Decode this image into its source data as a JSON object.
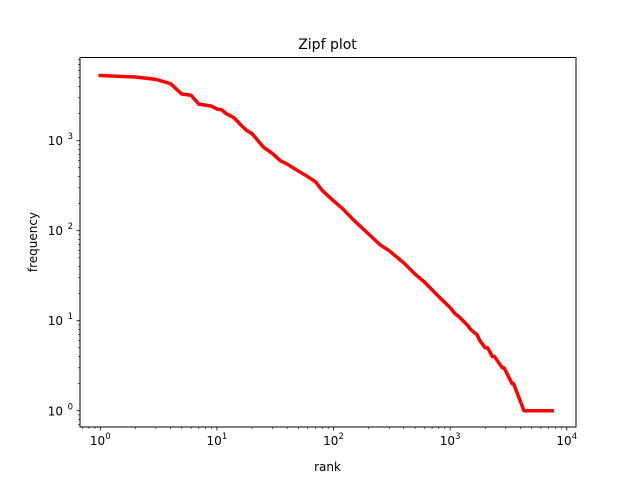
{
  "chart_data": {
    "type": "line",
    "title": "Zipf plot",
    "xlabel": "rank",
    "ylabel": "frequency",
    "xscale": "log",
    "yscale": "log",
    "xlim": [
      0.67,
      12000
    ],
    "ylim": [
      0.66,
      8400
    ],
    "grid": false,
    "legend": "none",
    "line_color": "#ff0000",
    "x_ticks": [
      {
        "value": 1,
        "base": "10",
        "exp": "0"
      },
      {
        "value": 10,
        "base": "10",
        "exp": "1"
      },
      {
        "value": 100,
        "base": "10",
        "exp": "2"
      },
      {
        "value": 1000,
        "base": "10",
        "exp": "3"
      },
      {
        "value": 10000,
        "base": "10",
        "exp": "4"
      }
    ],
    "y_ticks": [
      {
        "value": 1,
        "base": "10",
        "exp": "0"
      },
      {
        "value": 10,
        "base": "10",
        "exp": "1"
      },
      {
        "value": 100,
        "base": "10",
        "exp": "2"
      },
      {
        "value": 1000,
        "base": "10",
        "exp": "3"
      }
    ],
    "series": [
      {
        "x": [
          1,
          2,
          3,
          4,
          5,
          6,
          7,
          9,
          10,
          11,
          12,
          14,
          16,
          18,
          20,
          25,
          30,
          35,
          40,
          50,
          60,
          70,
          80,
          100,
          120,
          150,
          200,
          250,
          300,
          400,
          500,
          600,
          800,
          1000,
          1100,
          1200,
          1400,
          1500,
          1700,
          1800,
          2000,
          2100,
          2300,
          2400,
          2800,
          2900,
          3400,
          3500,
          4300,
          4400,
          7500
        ],
        "y": [
          5300,
          5100,
          4800,
          4300,
          3300,
          3200,
          2550,
          2420,
          2250,
          2200,
          2000,
          1800,
          1500,
          1300,
          1200,
          850,
          720,
          600,
          550,
          460,
          400,
          350,
          280,
          215,
          175,
          130,
          92,
          70,
          60,
          44,
          33,
          27,
          18.5,
          14,
          12,
          11,
          9,
          8,
          7,
          6,
          5,
          5,
          4,
          4,
          3,
          3,
          2,
          2,
          1,
          1,
          1
        ]
      }
    ]
  }
}
